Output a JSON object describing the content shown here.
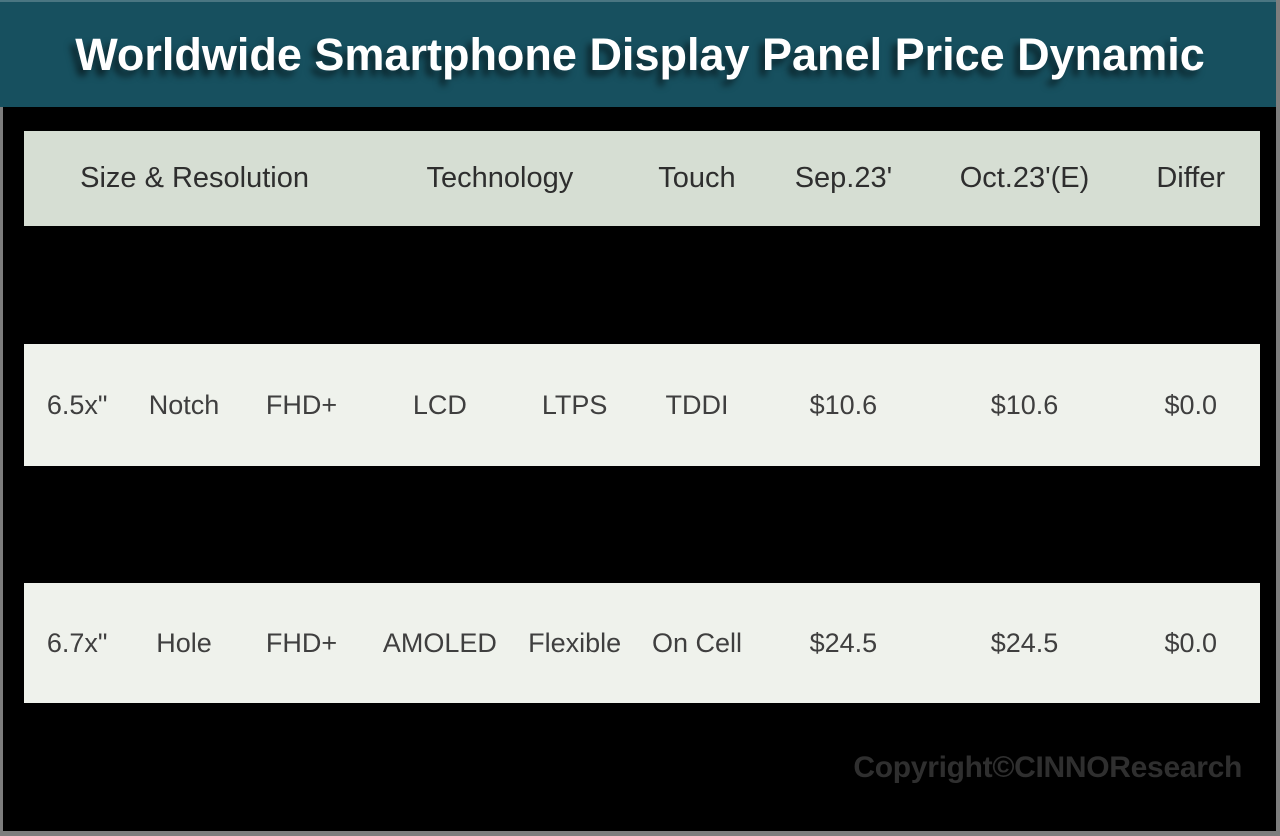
{
  "title": "Worldwide Smartphone Display Panel Price Dynamic",
  "footer": {
    "copyright": "Copyright©CINNOResearch"
  },
  "colors": {
    "banner_teal": "#17505f",
    "header_row_bg": "#d6ded3",
    "data_row_bg": "#eff2ec",
    "page_bg": "#000000",
    "frame_gray": "#7d7d7d",
    "title_text": "#ffffff",
    "table_text": "#3f3f3f",
    "copyright_text": "#2f2f2f"
  },
  "table": {
    "headers": [
      "Size & Resolution",
      "Technology",
      "Touch",
      "Sep.23'",
      "Oct.23'(E)",
      "Differ"
    ],
    "rows": [
      [
        "6.5x\"",
        "Notch",
        "FHD+",
        "LCD",
        "LTPS",
        "TDDI",
        "$10.6",
        "$10.6",
        "$0.0"
      ],
      [
        "6.7x\"",
        "Hole",
        "FHD+",
        "AMOLED",
        "Flexible",
        "On Cell",
        "$24.5",
        "$24.5",
        "$0.0"
      ]
    ]
  },
  "chart_data": {
    "type": "table",
    "title": "Worldwide Smartphone Display Panel Price Dynamic",
    "columns": [
      "Size & Resolution",
      "Technology",
      "Touch",
      "Sep.23'",
      "Oct.23'(E)",
      "Differ"
    ],
    "rows": [
      {
        "size": "6.5x\"",
        "cutout": "Notch",
        "resolution": "FHD+",
        "technology": "LCD LTPS",
        "touch": "TDDI",
        "sep_23": "$10.6",
        "oct_23_e": "$10.6",
        "differ": "$0.0"
      },
      {
        "size": "6.7x\"",
        "cutout": "Hole",
        "resolution": "FHD+",
        "technology": "AMOLED Flexible",
        "touch": "On Cell",
        "sep_23": "$24.5",
        "oct_23_e": "$24.5",
        "differ": "$0.0"
      }
    ],
    "notes": "Rows between visible entries are blacked out / redacted."
  }
}
